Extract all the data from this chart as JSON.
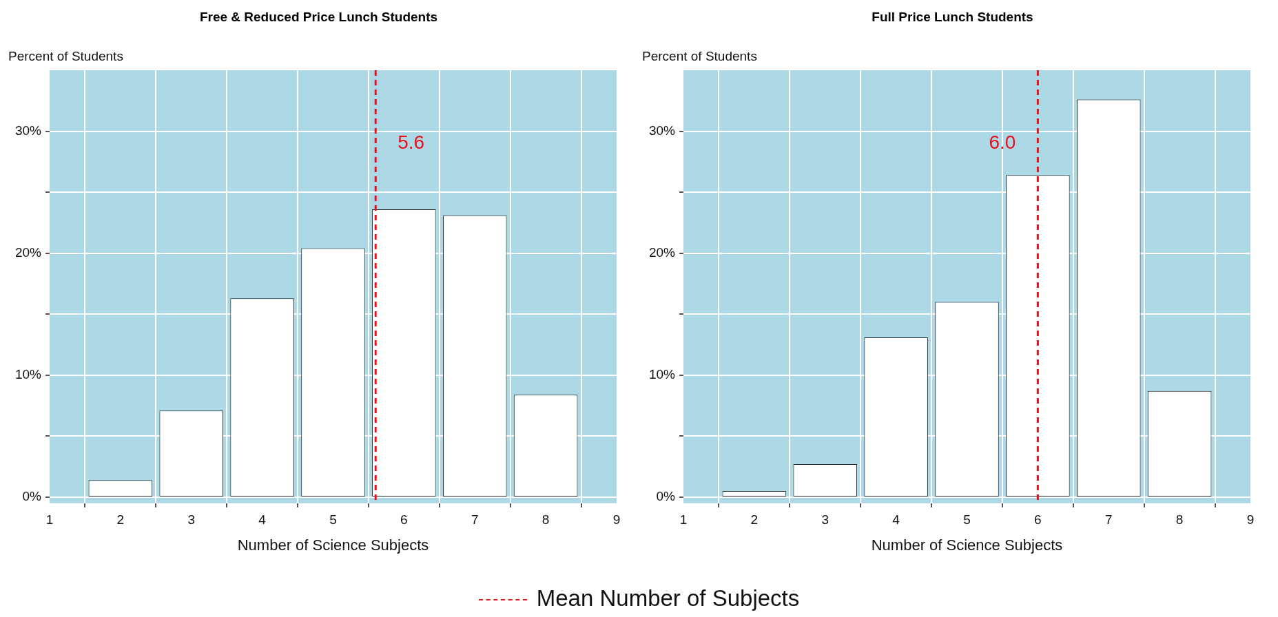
{
  "chart_data": [
    {
      "type": "histogram",
      "title": "Free & Reduced Price Lunch Students",
      "xlabel": "Number of Science Subjects",
      "ylabel": "Percent of Students",
      "bins": [
        1.5,
        2.5,
        3.5,
        4.5,
        5.5,
        6.5,
        7.5,
        8.5
      ],
      "values": [
        1.4,
        7.1,
        16.3,
        20.4,
        23.6,
        23.1,
        8.4
      ],
      "color": "#ffffff",
      "xlim": [
        1,
        9
      ],
      "xticks": [
        1,
        2,
        3,
        4,
        5,
        6,
        7,
        8,
        9
      ],
      "ylim": [
        -0.5,
        35
      ],
      "yticks": [
        {
          "value": 0,
          "label": "0%"
        },
        {
          "value": 5,
          "label": null
        },
        {
          "value": 10,
          "label": "10%"
        },
        {
          "value": 15,
          "label": null
        },
        {
          "value": 20,
          "label": "20%"
        },
        {
          "value": 25,
          "label": null
        },
        {
          "value": 30,
          "label": "30%"
        }
      ],
      "grid": true,
      "ref_lines": [
        {
          "axis": "x",
          "value": 5.6,
          "label": "5.6",
          "color": "#e8101a",
          "line_style": "dashed"
        }
      ],
      "annotations": [
        "Mean Number of Subjects"
      ]
    },
    {
      "type": "histogram",
      "title": "Full Price Lunch Students",
      "xlabel": "Number of Science Subjects",
      "ylabel": "Percent of Students",
      "bins": [
        1.5,
        2.5,
        3.5,
        4.5,
        5.5,
        6.5,
        7.5,
        8.5
      ],
      "values": [
        0.5,
        2.7,
        13.1,
        16.0,
        26.4,
        32.6,
        8.7
      ],
      "color": "#ffffff",
      "xlim": [
        1,
        9
      ],
      "xticks": [
        1,
        2,
        3,
        4,
        5,
        6,
        7,
        8,
        9
      ],
      "ylim": [
        -0.5,
        35
      ],
      "yticks": [
        {
          "value": 0,
          "label": "0%"
        },
        {
          "value": 5,
          "label": null
        },
        {
          "value": 10,
          "label": "10%"
        },
        {
          "value": 15,
          "label": null
        },
        {
          "value": 20,
          "label": "20%"
        },
        {
          "value": 25,
          "label": null
        },
        {
          "value": 30,
          "label": "30%"
        }
      ],
      "grid": true,
      "ref_lines": [
        {
          "axis": "x",
          "value": 6.0,
          "label": "6.0",
          "color": "#e8101a",
          "line_style": "dashed"
        }
      ]
    }
  ]
}
